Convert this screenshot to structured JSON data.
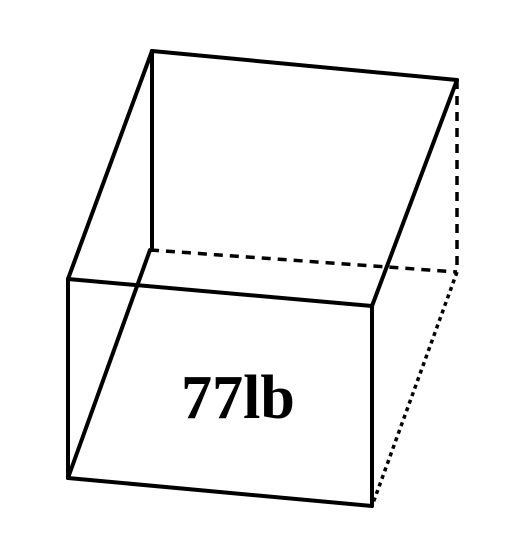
{
  "figure": {
    "shape": "box",
    "weight_label": "77lb",
    "line_color": "#000000",
    "background": "#ffffff"
  }
}
